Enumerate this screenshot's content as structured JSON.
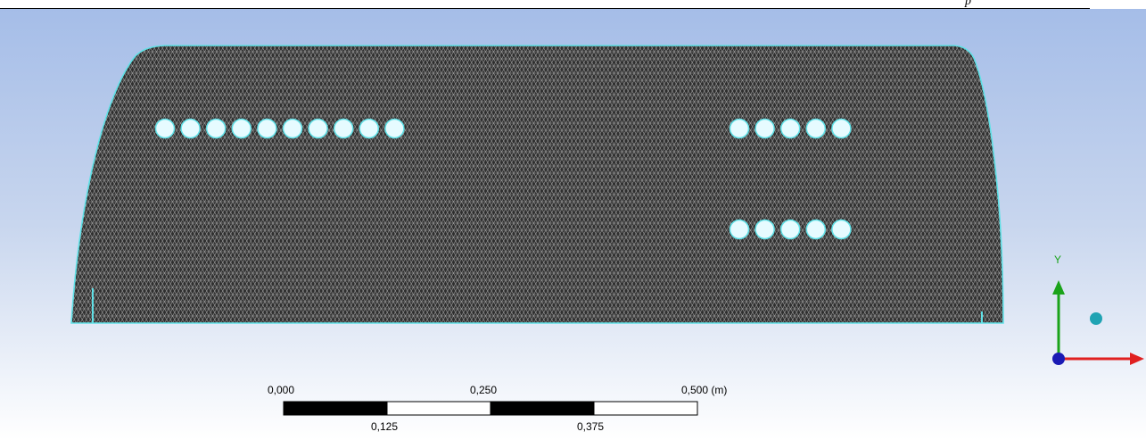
{
  "header": {
    "mark": "p"
  },
  "viewport": {
    "mesh": {
      "fill": "#2f2f2f",
      "line_color": "#9a9a9a",
      "edge_color": "#5fe0e6",
      "hole_fill": "#e6fbff",
      "hole_rows": [
        {
          "name": "upper-left-row",
          "count": 10
        },
        {
          "name": "upper-right-row",
          "count": 5
        },
        {
          "name": "lower-right-row",
          "count": 5
        }
      ]
    },
    "scale_bar": {
      "top_labels": [
        "0,000",
        "0,250",
        "0,500 (m)"
      ],
      "bottom_labels": [
        "0,125",
        "0,375"
      ],
      "colors": [
        "#000000",
        "#ffffff",
        "#000000",
        "#ffffff"
      ]
    },
    "axis_triad": {
      "y_label": "Y",
      "y_color": "#1aa31a",
      "x_color": "#e02020",
      "z_color": "#1a1ab4",
      "marker_color": "#1fa3b3"
    }
  }
}
